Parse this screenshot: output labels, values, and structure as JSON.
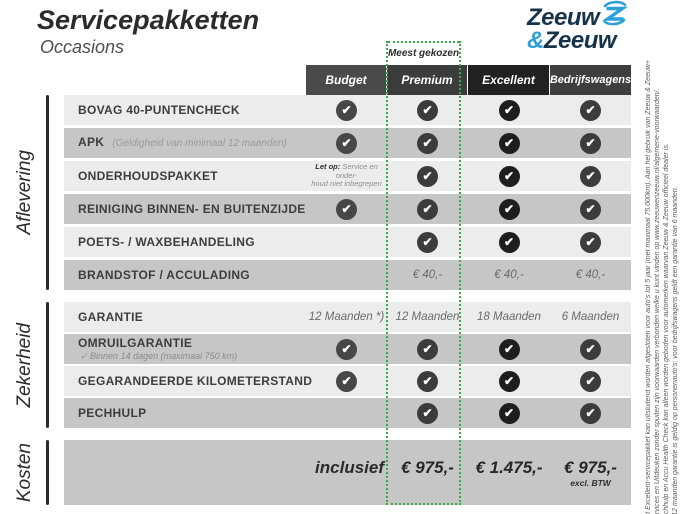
{
  "page": {
    "title": "Servicepakketten",
    "subtitle": "Occasions"
  },
  "logo": {
    "word1": "Zeeuw",
    "amp": "&",
    "word2": "Zeeuw"
  },
  "badge": {
    "label": "Meest gekozen"
  },
  "columns": [
    {
      "id": "budget",
      "label": "Budget"
    },
    {
      "id": "premium",
      "label": "Premium"
    },
    {
      "id": "excellent",
      "label": "Excellent"
    },
    {
      "id": "bedrijfswagens",
      "label": "Bedrijfswagens"
    }
  ],
  "letop_note": {
    "prefix": "Let op:",
    "line1": "Service en onder-",
    "line2": "houd niet inbegrepen"
  },
  "sections": [
    {
      "label": "Aflevering",
      "rows": [
        {
          "label": "BOVAG 40-PUNTENCHECK",
          "note": "",
          "cells": [
            "✓",
            "✓",
            "✓",
            "✓"
          ]
        },
        {
          "label": "APK",
          "note": "(Geldigheid van minimaal 12 maanden)",
          "cells": [
            "✓",
            "✓",
            "✓",
            "✓"
          ]
        },
        {
          "label": "ONDERHOUDSPAKKET",
          "note": "",
          "cells": [
            "letop",
            "✓",
            "✓",
            "✓"
          ]
        },
        {
          "label": "REINIGING BINNEN- EN BUITENZIJDE",
          "note": "",
          "cells": [
            "✓",
            "✓",
            "✓",
            "✓"
          ]
        },
        {
          "label": "POETS- / WAXBEHANDELING",
          "note": "",
          "cells": [
            "",
            "✓",
            "✓",
            "✓"
          ]
        },
        {
          "label": "BRANDSTOF / ACCULADING",
          "note": "",
          "cells": [
            "",
            "€ 40,-",
            "€ 40,-",
            "€ 40,-"
          ]
        }
      ]
    },
    {
      "label": "Zekerheid",
      "rows": [
        {
          "label": "GARANTIE",
          "note": "",
          "cells": [
            "12 Maanden *)",
            "12 Maanden",
            "18 Maanden",
            "6 Maanden"
          ]
        },
        {
          "label": "OMRUILGARANTIE",
          "note": "",
          "subnote": "✓   Binnen 14 dagen (maximaal 750 km)",
          "cells": [
            "✓",
            "✓",
            "✓",
            "✓"
          ]
        },
        {
          "label": "GEGARANDEERDE KILOMETERSTAND",
          "note": "",
          "cells": [
            "✓",
            "✓",
            "✓",
            "✓"
          ]
        },
        {
          "label": "PECHHULP",
          "note": "",
          "cells": [
            "",
            "✓",
            "✓",
            "✓"
          ]
        }
      ]
    }
  ],
  "kosten": {
    "label": "Kosten",
    "inclusief": "inclusief",
    "prices": [
      "€ 975,-",
      "€ 1.475,-",
      "€ 975,-"
    ],
    "price_note": "excl. BTW"
  },
  "fine_print": [
    "Het Excellent-servicepakket kan uitsluitend worden afgesloten voor auto's tot 5 jaar (met maximaal 75.000km). Aan het gebruik van Zeeuw & Zeeuw+",
    "Services en Uitdeuken zonder spuiten zijn voorwaarden verbonden welke u kunt vinden op www.zeeuwenzeeuw.nl/algemene-voorwaarden/.",
    "Pechhulp en Accu Health Check kan alleen worden geboden voor automerken waarvan Zeeuw & Zeeuw officieel dealer is.",
    "*) 12 maanden garantie is geldig op personenauto's; voor bedrijfswagens geldt een garantie van 6 maanden."
  ],
  "colors": {
    "accent_green": "#3fa84c",
    "navy": "#17334b",
    "blue": "#2d9fd8",
    "row_light": "#ececec",
    "row_dark": "#c6c6c6",
    "header_bgs": [
      "#4a4a4a",
      "#3c3c3c",
      "#212121",
      "#3f3f3f"
    ],
    "check_bgs": [
      "#474747",
      "#3c3c3c",
      "#1e1e1e",
      "#3c3c3c"
    ]
  }
}
